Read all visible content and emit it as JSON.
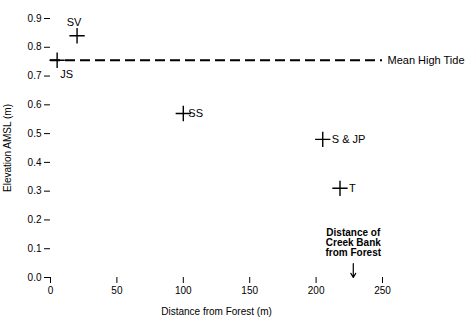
{
  "chart_data": {
    "type": "scatter",
    "x": [
      20,
      5,
      100,
      205,
      218
    ],
    "values": [
      0.84,
      0.755,
      0.57,
      0.48,
      0.31
    ],
    "point_labels": [
      "SV",
      "JS",
      "SS",
      "S & JP",
      "T"
    ],
    "marker": "plus",
    "color": "black",
    "xlabel": "Distance from Forest (m)",
    "ylabel": "Elevation AMSL (m)",
    "xlim": [
      0,
      250
    ],
    "ylim": [
      0,
      0.9
    ],
    "xticks": [
      0,
      50,
      100,
      150,
      200,
      250
    ],
    "yticks": [
      {
        "value": 0,
        "label": "0.0"
      },
      0.1,
      0.2,
      0.3,
      0.4,
      0.5,
      0.6,
      0.7,
      0.8,
      0.9
    ],
    "reference_line": {
      "y": 0.755,
      "label": "Mean High Tide",
      "line_style": "dashed",
      "color": "black"
    },
    "annotations": [
      {
        "text": "Distance of\nCreek Bank\nfrom Forest",
        "x": 228,
        "y": 0.17,
        "arrow_to": {
          "x": 228,
          "y": 0.0
        }
      }
    ]
  }
}
